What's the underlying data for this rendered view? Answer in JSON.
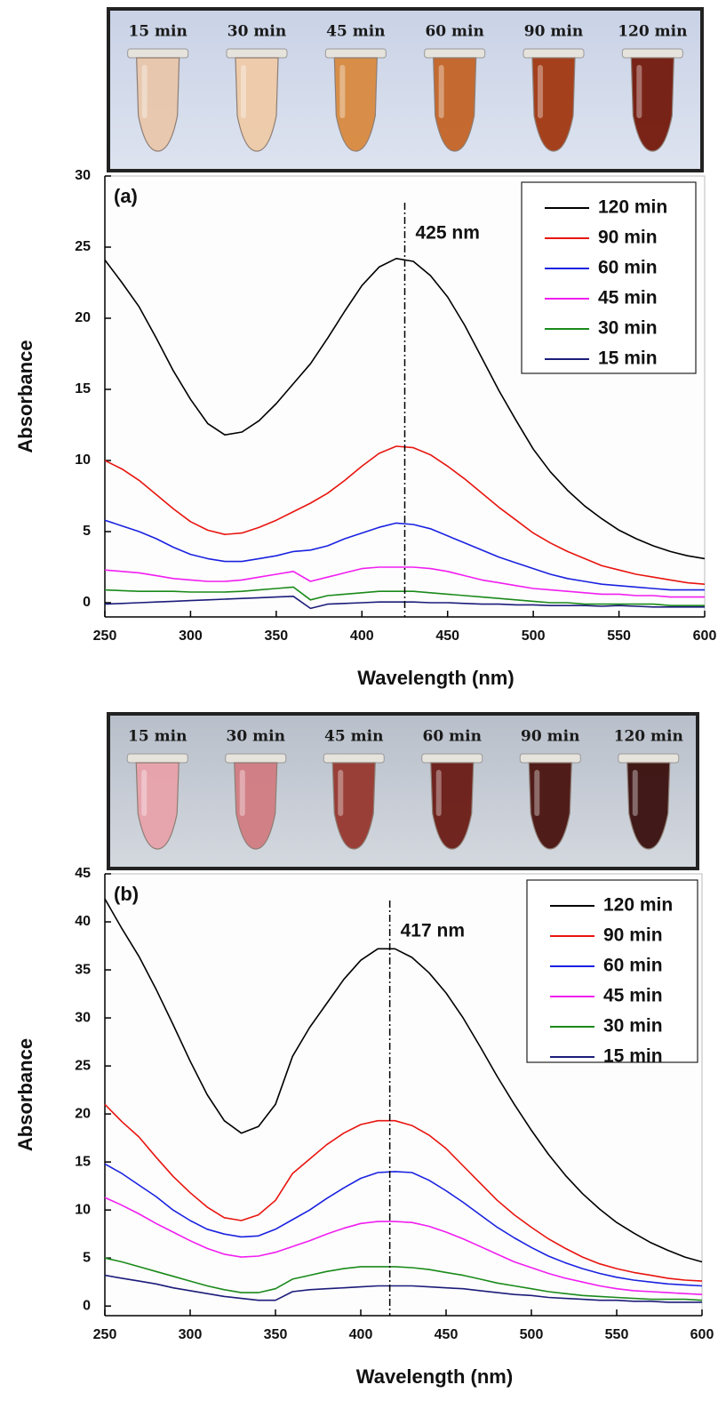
{
  "chart_data": [
    {
      "type": "line",
      "panel_label": "(a)",
      "x_label": "Wavelength (nm)",
      "y_label": "Absorbance",
      "photo_labels": [
        "15 min",
        "30 min",
        "45 min",
        "60 min",
        "90 min",
        "120 min"
      ],
      "tube_colors": [
        "#e9c7ab",
        "#efcba8",
        "#d98a40",
        "#c46426",
        "#a33812",
        "#741a0c"
      ],
      "marker": {
        "x": 425,
        "label": "425 nm"
      },
      "xlim": [
        250,
        600
      ],
      "xticks": [
        250,
        300,
        350,
        400,
        450,
        500,
        550,
        600
      ],
      "ylim": [
        -1,
        30
      ],
      "yticks": [
        0,
        5,
        10,
        15,
        20,
        25,
        30
      ],
      "legend": "upper right",
      "x": [
        250,
        260,
        270,
        280,
        290,
        300,
        310,
        320,
        330,
        340,
        350,
        360,
        370,
        380,
        390,
        400,
        410,
        420,
        430,
        440,
        450,
        460,
        470,
        480,
        490,
        500,
        510,
        520,
        530,
        540,
        550,
        560,
        570,
        580,
        590,
        600
      ],
      "series": [
        {
          "name": "120 min",
          "color": "#000000",
          "values": [
            24.1,
            22.5,
            20.8,
            18.6,
            16.3,
            14.3,
            12.6,
            11.8,
            12.0,
            12.8,
            14.0,
            15.4,
            16.8,
            18.6,
            20.5,
            22.3,
            23.6,
            24.2,
            24.0,
            23.0,
            21.5,
            19.5,
            17.2,
            14.9,
            12.8,
            10.8,
            9.2,
            7.9,
            6.8,
            5.9,
            5.1,
            4.5,
            4.0,
            3.6,
            3.3,
            3.1
          ]
        },
        {
          "name": "90 min",
          "color": "#e8150f",
          "values": [
            10.0,
            9.4,
            8.6,
            7.6,
            6.6,
            5.7,
            5.1,
            4.8,
            4.9,
            5.3,
            5.8,
            6.4,
            7.0,
            7.7,
            8.6,
            9.6,
            10.5,
            11.0,
            10.9,
            10.4,
            9.6,
            8.7,
            7.7,
            6.7,
            5.8,
            4.9,
            4.2,
            3.6,
            3.1,
            2.6,
            2.3,
            2.0,
            1.8,
            1.6,
            1.4,
            1.3
          ]
        },
        {
          "name": "60 min",
          "color": "#1a22e0",
          "values": [
            5.8,
            5.4,
            5.0,
            4.5,
            3.9,
            3.4,
            3.1,
            2.9,
            2.9,
            3.1,
            3.3,
            3.6,
            3.7,
            4.0,
            4.5,
            4.9,
            5.3,
            5.6,
            5.5,
            5.2,
            4.7,
            4.2,
            3.7,
            3.2,
            2.8,
            2.4,
            2.0,
            1.7,
            1.5,
            1.3,
            1.2,
            1.1,
            1.0,
            0.9,
            0.9,
            0.9
          ]
        },
        {
          "name": "45 min",
          "color": "#f01ef0",
          "values": [
            2.3,
            2.2,
            2.1,
            1.9,
            1.7,
            1.6,
            1.5,
            1.5,
            1.6,
            1.8,
            2.0,
            2.2,
            1.5,
            1.8,
            2.1,
            2.4,
            2.5,
            2.5,
            2.5,
            2.4,
            2.2,
            1.9,
            1.6,
            1.4,
            1.2,
            1.0,
            0.9,
            0.8,
            0.7,
            0.6,
            0.6,
            0.5,
            0.5,
            0.4,
            0.4,
            0.4
          ]
        },
        {
          "name": "30 min",
          "color": "#1a8a1a",
          "values": [
            0.9,
            0.85,
            0.8,
            0.8,
            0.8,
            0.75,
            0.75,
            0.75,
            0.8,
            0.9,
            1.0,
            1.1,
            0.2,
            0.5,
            0.6,
            0.7,
            0.8,
            0.8,
            0.8,
            0.7,
            0.6,
            0.5,
            0.4,
            0.3,
            0.2,
            0.1,
            0.0,
            0.0,
            -0.1,
            -0.1,
            -0.1,
            -0.1,
            -0.1,
            -0.2,
            -0.2,
            -0.2
          ]
        },
        {
          "name": "15 min",
          "color": "#1c1c7a",
          "values": [
            -0.1,
            -0.05,
            0.0,
            0.05,
            0.1,
            0.15,
            0.2,
            0.25,
            0.3,
            0.35,
            0.4,
            0.45,
            -0.4,
            -0.1,
            -0.05,
            0.0,
            0.05,
            0.05,
            0.05,
            0.0,
            0.0,
            -0.05,
            -0.1,
            -0.1,
            -0.15,
            -0.15,
            -0.2,
            -0.2,
            -0.2,
            -0.25,
            -0.2,
            -0.25,
            -0.3,
            -0.3,
            -0.3,
            -0.3
          ]
        }
      ]
    },
    {
      "type": "line",
      "panel_label": "(b)",
      "x_label": "Wavelength (nm)",
      "y_label": "Absorbance",
      "photo_labels": [
        "15 min",
        "30 min",
        "45 min",
        "60 min",
        "90 min",
        "120 min"
      ],
      "tube_colors": [
        "#e8a2aa",
        "#d27c82",
        "#973830",
        "#6c1c16",
        "#4a1310",
        "#3a100e"
      ],
      "marker": {
        "x": 417,
        "label": "417 nm"
      },
      "xlim": [
        250,
        600
      ],
      "xticks": [
        250,
        300,
        350,
        400,
        450,
        500,
        550,
        600
      ],
      "ylim": [
        -1,
        45
      ],
      "yticks": [
        0,
        5,
        10,
        15,
        20,
        25,
        30,
        35,
        40,
        45
      ],
      "legend": "upper right",
      "x": [
        250,
        260,
        270,
        280,
        290,
        300,
        310,
        320,
        330,
        340,
        350,
        360,
        370,
        380,
        390,
        400,
        410,
        420,
        430,
        440,
        450,
        460,
        470,
        480,
        490,
        500,
        510,
        520,
        530,
        540,
        550,
        560,
        570,
        580,
        590,
        600
      ],
      "series": [
        {
          "name": "120 min",
          "color": "#000000",
          "values": [
            42.4,
            39.3,
            36.4,
            33.0,
            29.3,
            25.5,
            22.0,
            19.3,
            18.0,
            18.7,
            21.0,
            26.0,
            29.0,
            31.5,
            34.0,
            36.0,
            37.2,
            37.2,
            36.3,
            34.7,
            32.6,
            30.0,
            27.0,
            23.9,
            21.0,
            18.3,
            15.8,
            13.6,
            11.7,
            10.1,
            8.7,
            7.6,
            6.6,
            5.8,
            5.1,
            4.6
          ]
        },
        {
          "name": "90 min",
          "color": "#e8150f",
          "values": [
            21.0,
            19.2,
            17.6,
            15.5,
            13.5,
            11.8,
            10.3,
            9.2,
            8.9,
            9.5,
            11.0,
            13.8,
            15.3,
            16.8,
            18.0,
            18.9,
            19.3,
            19.3,
            18.8,
            17.8,
            16.4,
            14.6,
            12.8,
            11.0,
            9.5,
            8.2,
            7.0,
            6.0,
            5.1,
            4.4,
            3.9,
            3.5,
            3.2,
            2.9,
            2.7,
            2.6
          ]
        },
        {
          "name": "60 min",
          "color": "#1a22e0",
          "values": [
            14.8,
            13.8,
            12.6,
            11.4,
            10.0,
            8.9,
            8.0,
            7.5,
            7.2,
            7.3,
            8.0,
            9.0,
            10.0,
            11.2,
            12.3,
            13.3,
            13.9,
            14.0,
            13.9,
            13.1,
            12.0,
            10.8,
            9.5,
            8.2,
            7.1,
            6.1,
            5.2,
            4.5,
            3.9,
            3.4,
            3.0,
            2.7,
            2.5,
            2.3,
            2.2,
            2.1
          ]
        },
        {
          "name": "45 min",
          "color": "#f01ef0",
          "values": [
            11.3,
            10.5,
            9.6,
            8.6,
            7.7,
            6.8,
            6.0,
            5.4,
            5.1,
            5.2,
            5.6,
            6.2,
            6.8,
            7.5,
            8.1,
            8.6,
            8.8,
            8.8,
            8.7,
            8.3,
            7.7,
            7.0,
            6.2,
            5.4,
            4.6,
            4.0,
            3.4,
            2.9,
            2.5,
            2.1,
            1.8,
            1.6,
            1.5,
            1.4,
            1.3,
            1.2
          ]
        },
        {
          "name": "30 min",
          "color": "#1a8a1a",
          "values": [
            5.0,
            4.6,
            4.1,
            3.6,
            3.1,
            2.6,
            2.1,
            1.7,
            1.4,
            1.4,
            1.8,
            2.8,
            3.2,
            3.6,
            3.9,
            4.1,
            4.1,
            4.1,
            4.0,
            3.8,
            3.5,
            3.2,
            2.8,
            2.4,
            2.1,
            1.8,
            1.5,
            1.3,
            1.1,
            1.0,
            0.9,
            0.8,
            0.7,
            0.7,
            0.7,
            0.6
          ]
        },
        {
          "name": "15 min",
          "color": "#1c1c7a",
          "values": [
            3.2,
            2.9,
            2.6,
            2.3,
            1.9,
            1.6,
            1.3,
            1.0,
            0.8,
            0.6,
            0.6,
            1.5,
            1.7,
            1.8,
            1.9,
            2.0,
            2.1,
            2.1,
            2.1,
            2.0,
            1.9,
            1.8,
            1.6,
            1.4,
            1.2,
            1.1,
            0.9,
            0.8,
            0.7,
            0.6,
            0.6,
            0.5,
            0.5,
            0.4,
            0.4,
            0.4
          ]
        }
      ]
    }
  ]
}
